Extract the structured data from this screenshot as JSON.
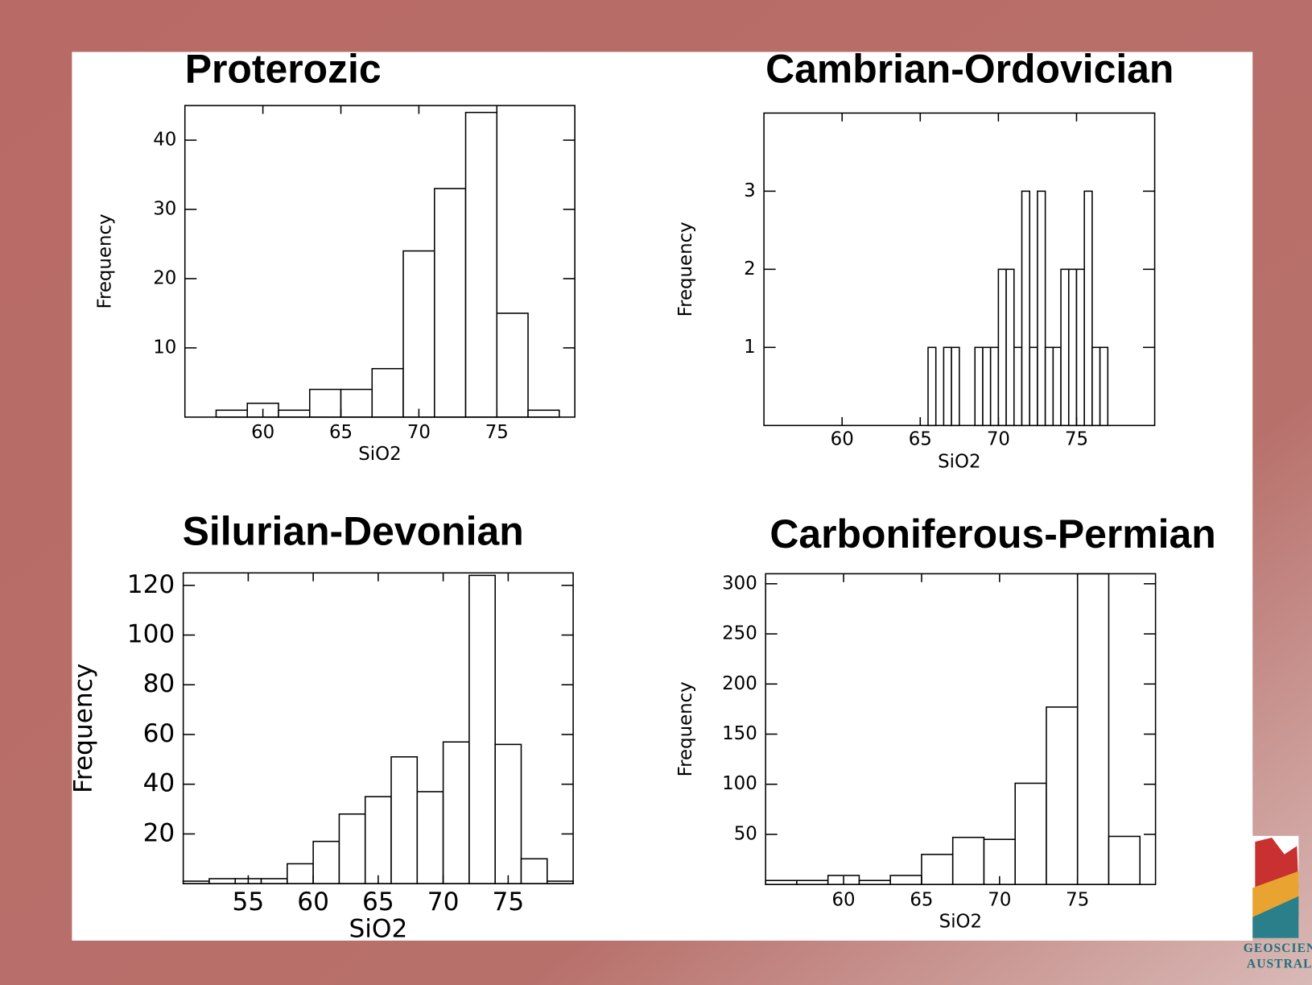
{
  "chart_data": [
    {
      "type": "histogram",
      "title": "Proterozic",
      "xlabel": "SiO2",
      "ylabel": "Frequency",
      "bins": [
        57,
        59,
        61,
        63,
        65,
        67,
        69,
        71,
        73,
        75,
        77,
        79
      ],
      "values": [
        1,
        2,
        1,
        4,
        4,
        7,
        24,
        33,
        44,
        15,
        1
      ],
      "xlim": [
        55,
        80
      ],
      "xticks": [
        60,
        65,
        70,
        75
      ],
      "ylim": [
        0,
        45
      ],
      "yticks": [
        10,
        20,
        30,
        40
      ],
      "color": "#ffffff"
    },
    {
      "type": "histogram",
      "title": "Cambrian-Ordovician",
      "xlabel": "SiO2",
      "ylabel": "Frequency",
      "bins": [
        65.5,
        66,
        66.5,
        67,
        67.5,
        68,
        68.5,
        69,
        69.5,
        70,
        70.5,
        71,
        71.5,
        72,
        72.5,
        73,
        73.5,
        74,
        74.5,
        75,
        75.5,
        76,
        76.5,
        77
      ],
      "values": [
        1,
        0,
        1,
        1,
        0,
        0,
        1,
        1,
        1,
        2,
        2,
        1,
        3,
        1,
        3,
        1,
        1,
        2,
        2,
        2,
        3,
        1,
        1
      ],
      "xlim": [
        55,
        80
      ],
      "xticks": [
        60,
        65,
        70,
        75
      ],
      "ylim": [
        0,
        4
      ],
      "yticks": [
        1,
        2,
        3
      ],
      "color": "#ffffff"
    },
    {
      "type": "histogram",
      "title": "Silurian-Devonian",
      "xlabel": "SiO2",
      "ylabel": "Frequency",
      "bins": [
        50,
        52,
        54,
        56,
        58,
        60,
        62,
        64,
        66,
        68,
        70,
        72,
        74,
        76,
        78,
        80
      ],
      "values": [
        1,
        2,
        2,
        2,
        8,
        17,
        28,
        35,
        51,
        37,
        57,
        124,
        56,
        10,
        1
      ],
      "xlim": [
        50,
        80
      ],
      "xticks": [
        55,
        60,
        65,
        70,
        75
      ],
      "ylim": [
        0,
        125
      ],
      "yticks": [
        20,
        40,
        60,
        80,
        100,
        120
      ],
      "color": "#ffffff"
    },
    {
      "type": "histogram",
      "title": "Carboniferous-Permian",
      "xlabel": "SiO2",
      "ylabel": "Frequency",
      "bins": [
        55,
        57,
        59,
        61,
        63,
        65,
        67,
        69,
        71,
        73,
        75,
        77,
        79
      ],
      "values": [
        4,
        4,
        9,
        4,
        9,
        30,
        47,
        45,
        101,
        177,
        310,
        48
      ],
      "xlim": [
        55,
        80
      ],
      "xticks": [
        60,
        65,
        70,
        75
      ],
      "ylim": [
        0,
        310
      ],
      "yticks": [
        50,
        100,
        150,
        200,
        250,
        300
      ],
      "color": "#ffffff"
    }
  ],
  "logo": {
    "line1": "GEOSCIENCE",
    "line2": "AUSTRALIA"
  }
}
